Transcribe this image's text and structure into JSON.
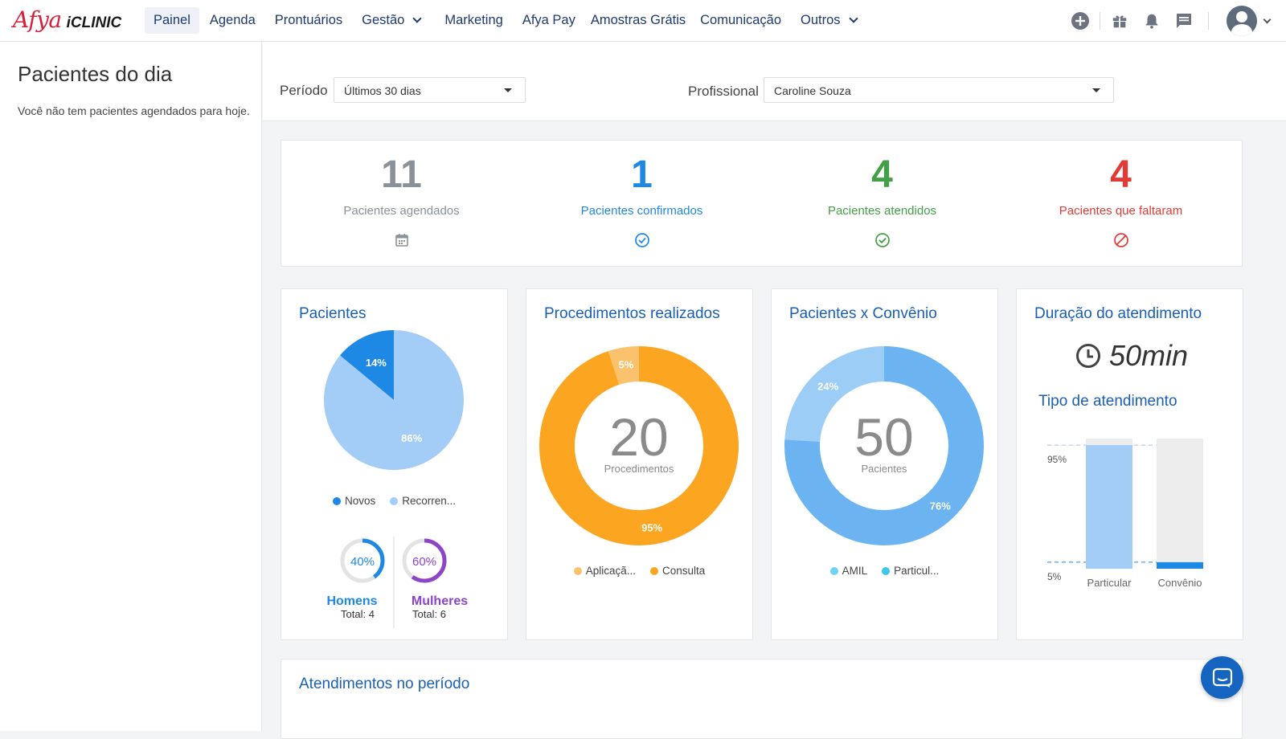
{
  "brand": {
    "afya": "Afya",
    "iclinic": "iCLINIC"
  },
  "nav": {
    "items": [
      {
        "label": "Painel",
        "active": true,
        "dropdown": false
      },
      {
        "label": "Agenda",
        "active": false,
        "dropdown": false
      },
      {
        "label": "Prontuários",
        "active": false,
        "dropdown": false
      },
      {
        "label": "Gestão",
        "active": false,
        "dropdown": true
      },
      {
        "label": "Marketing",
        "active": false,
        "dropdown": false
      },
      {
        "label": "Afya Pay",
        "active": false,
        "dropdown": false
      },
      {
        "label": "Amostras Grátis",
        "active": false,
        "dropdown": false
      },
      {
        "label": "Comunicação",
        "active": false,
        "dropdown": false
      },
      {
        "label": "Outros",
        "active": false,
        "dropdown": true
      }
    ],
    "icons": [
      "add-circle-icon",
      "gift-icon",
      "bell-icon",
      "chat-icon"
    ]
  },
  "sidebar": {
    "title": "Pacientes do dia",
    "empty_message": "Você não tem pacientes agendados para hoje."
  },
  "filters": {
    "period_label": "Período",
    "period_value": "Últimos 30 dias",
    "professional_label": "Profissional",
    "professional_value": "Caroline Souza"
  },
  "stats": [
    {
      "value": "11",
      "label": "Pacientes agendados",
      "color": "#8a9199",
      "icon": "calendar-icon"
    },
    {
      "value": "1",
      "label": "Pacientes confirmados",
      "color": "#1e88e5",
      "icon": "check-circle-icon"
    },
    {
      "value": "4",
      "label": "Pacientes atendidos",
      "color": "#43a047",
      "icon": "check-circle-icon"
    },
    {
      "value": "4",
      "label": "Pacientes que faltaram",
      "color": "#e53935",
      "icon": "block-icon"
    }
  ],
  "cards": {
    "pacientes": {
      "title": "Pacientes",
      "legend": [
        "Novos",
        "Recorren..."
      ],
      "homens": {
        "percent": "40%",
        "label": "Homens",
        "total": "Total: 4",
        "value": 40
      },
      "mulheres": {
        "percent": "60%",
        "label": "Mulheres",
        "total": "Total: 6",
        "value": 60
      }
    },
    "procedimentos": {
      "title": "Procedimentos realizados",
      "center_value": "20",
      "center_label": "Procedimentos",
      "legend": [
        "Aplicaçã...",
        "Consulta"
      ]
    },
    "convenio": {
      "title": "Pacientes x Convênio",
      "center_value": "50",
      "center_label": "Pacientes",
      "legend": [
        "AMIL",
        "Particul..."
      ]
    },
    "duracao": {
      "title": "Duração do atendimento",
      "value": "50min",
      "subtitle": "Tipo de atendimento"
    }
  },
  "bottom": {
    "title": "Atendimentos no período"
  },
  "chart_data": [
    {
      "type": "pie",
      "title": "Pacientes",
      "categories": [
        "Novos",
        "Recorren..."
      ],
      "values": [
        14,
        86
      ],
      "labels": [
        "14%",
        "86%"
      ],
      "colors": [
        "#1e88e5",
        "#a3cdf7"
      ]
    },
    {
      "type": "pie",
      "title": "Procedimentos realizados",
      "categories": [
        "Aplicaçã...",
        "Consulta"
      ],
      "values": [
        5,
        95
      ],
      "labels": [
        "5%",
        "95%"
      ],
      "colors": [
        "#fbc26d",
        "#fba520"
      ]
    },
    {
      "type": "pie",
      "title": "Pacientes x Convênio",
      "categories": [
        "AMIL",
        "Particul..."
      ],
      "values": [
        24,
        76
      ],
      "labels": [
        "24%",
        "76%"
      ],
      "colors": [
        "#9ccdf6",
        "#6bb4f1"
      ]
    },
    {
      "type": "bar",
      "title": "Tipo de atendimento",
      "categories": [
        "Particular",
        "Convênio"
      ],
      "values": [
        95,
        5
      ],
      "ylim": [
        0,
        100
      ],
      "reference_lines": [
        "95%",
        "5%"
      ],
      "colors": [
        "#a3cdf7",
        "#1e88e5"
      ]
    }
  ]
}
